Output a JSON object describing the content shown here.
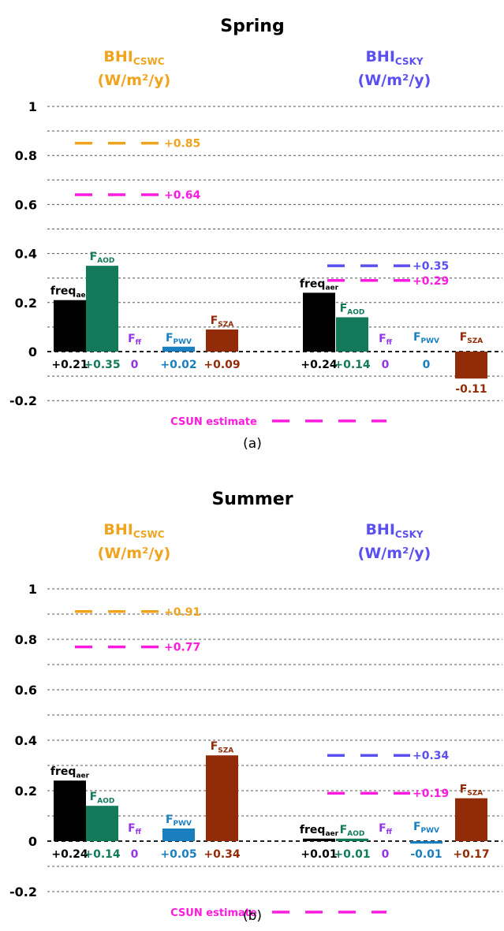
{
  "colors": {
    "cswc": "#f0a41e",
    "csky": "#5b4ff0",
    "freq": "#000000",
    "aod": "#127a5b",
    "ff": "#9633e8",
    "pwv": "#1a7fbf",
    "sza": "#922b07",
    "csun": "#ff1adf"
  },
  "chart_data": [
    {
      "type": "bar",
      "title": "Spring",
      "caption": "(a)",
      "ylim": [
        -0.2,
        1.0
      ],
      "yticks": [
        "1",
        "0.8",
        "0.6",
        "0.4",
        "0.2",
        "0",
        "-0.2"
      ],
      "grid": true,
      "csun_legend": "CSUN estimate",
      "groups": [
        {
          "name": "BHI",
          "sub": "CSWC",
          "unit": "(W/m²/y)",
          "color_key": "cswc",
          "cswc_ref": {
            "value": 0.85,
            "label": "+0.85",
            "color_key": "cswc"
          },
          "csun_ref": {
            "value": 0.64,
            "label": "+0.64",
            "color_key": "csun"
          },
          "bars": [
            {
              "name": "freq",
              "sub": "aer",
              "value": 0.21,
              "label": "+0.21",
              "color_key": "freq"
            },
            {
              "name": "F",
              "sub": "AOD",
              "value": 0.35,
              "label": "+0.35",
              "color_key": "aod"
            },
            {
              "name": "F",
              "sub": "ff",
              "value": 0,
              "label": "0",
              "color_key": "ff"
            },
            {
              "name": "F",
              "sub": "PWV",
              "value": 0.02,
              "label": "+0.02",
              "color_key": "pwv"
            },
            {
              "name": "F",
              "sub": "SZA",
              "value": 0.09,
              "label": "+0.09",
              "color_key": "sza"
            }
          ]
        },
        {
          "name": "BHI",
          "sub": "CSKY",
          "unit": "(W/m²/y)",
          "color_key": "csky",
          "cswc_ref": {
            "value": 0.35,
            "label": "+0.35",
            "color_key": "csky"
          },
          "csun_ref": {
            "value": 0.29,
            "label": "+0.29",
            "color_key": "csun"
          },
          "bars": [
            {
              "name": "freq",
              "sub": "aer",
              "value": 0.24,
              "label": "+0.24",
              "color_key": "freq"
            },
            {
              "name": "F",
              "sub": "AOD",
              "value": 0.14,
              "label": "+0.14",
              "color_key": "aod"
            },
            {
              "name": "F",
              "sub": "ff",
              "value": 0,
              "label": "0",
              "color_key": "ff"
            },
            {
              "name": "F",
              "sub": "PWV",
              "value": 0,
              "label": "0",
              "color_key": "pwv"
            },
            {
              "name": "F",
              "sub": "SZA",
              "value": -0.11,
              "label": "-0.11",
              "color_key": "sza"
            }
          ]
        }
      ]
    },
    {
      "type": "bar",
      "title": "Summer",
      "caption": "(b)",
      "ylim": [
        -0.2,
        1.0
      ],
      "yticks": [
        "1",
        "0.8",
        "0.6",
        "0.4",
        "0.2",
        "0",
        "-0.2"
      ],
      "grid": true,
      "csun_legend": "CSUN estimate",
      "groups": [
        {
          "name": "BHI",
          "sub": "CSWC",
          "unit": "(W/m²/y)",
          "color_key": "cswc",
          "cswc_ref": {
            "value": 0.91,
            "label": "+0.91",
            "color_key": "cswc"
          },
          "csun_ref": {
            "value": 0.77,
            "label": "+0.77",
            "color_key": "csun"
          },
          "bars": [
            {
              "name": "freq",
              "sub": "aer",
              "value": 0.24,
              "label": "+0.24",
              "color_key": "freq"
            },
            {
              "name": "F",
              "sub": "AOD",
              "value": 0.14,
              "label": "+0.14",
              "color_key": "aod"
            },
            {
              "name": "F",
              "sub": "ff",
              "value": 0,
              "label": "0",
              "color_key": "ff"
            },
            {
              "name": "F",
              "sub": "PWV",
              "value": 0.05,
              "label": "+0.05",
              "color_key": "pwv"
            },
            {
              "name": "F",
              "sub": "SZA",
              "value": 0.34,
              "label": "+0.34",
              "color_key": "sza"
            }
          ]
        },
        {
          "name": "BHI",
          "sub": "CSKY",
          "unit": "(W/m²/y)",
          "color_key": "csky",
          "cswc_ref": {
            "value": 0.34,
            "label": "+0.34",
            "color_key": "csky"
          },
          "csun_ref": {
            "value": 0.19,
            "label": "+0.19",
            "color_key": "csun"
          },
          "bars": [
            {
              "name": "freq",
              "sub": "aer",
              "value": 0.01,
              "label": "+0.01",
              "color_key": "freq"
            },
            {
              "name": "F",
              "sub": "AOD",
              "value": 0.01,
              "label": "+0.01",
              "color_key": "aod"
            },
            {
              "name": "F",
              "sub": "ff",
              "value": 0,
              "label": "0",
              "color_key": "ff"
            },
            {
              "name": "F",
              "sub": "PWV",
              "value": -0.01,
              "label": "-0.01",
              "color_key": "pwv"
            },
            {
              "name": "F",
              "sub": "SZA",
              "value": 0.17,
              "label": "+0.17",
              "color_key": "sza"
            }
          ]
        }
      ]
    }
  ]
}
